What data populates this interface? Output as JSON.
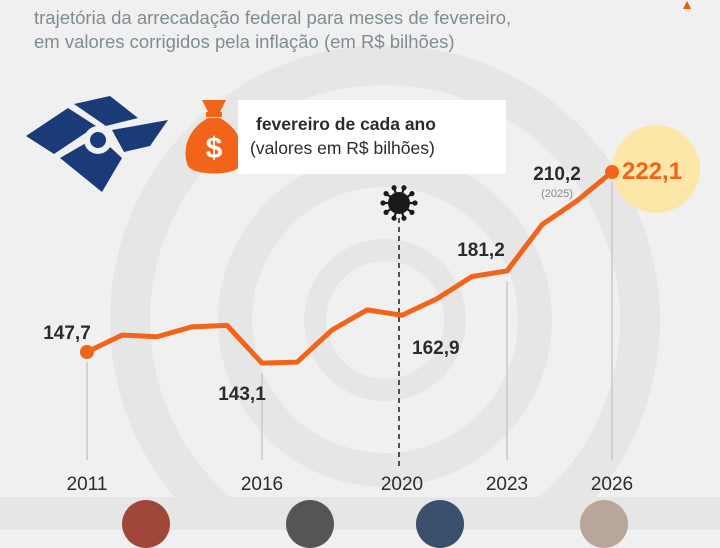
{
  "header": {
    "line1": "trajetória da arrecadação federal para meses de fevereiro,",
    "line2": "em valores corrigidos pela inflação (em R$ bilhões)"
  },
  "legend": {
    "title": "fevereiro de cada ano",
    "subtitle": "(valores em R$ bilhões)",
    "icon": "money-bag-icon",
    "icon_symbol": "$"
  },
  "logo": {
    "icon": "receita-federal-logo"
  },
  "event_marker": {
    "icon": "virus-icon",
    "year": 2020
  },
  "colors": {
    "line": "#f26419",
    "highlight": "#fde7a8",
    "label": "#2b2b2b",
    "last_label": "#f26419",
    "logo": "#1a3b78",
    "background": "#f0f0f0",
    "header_text": "#7f8c93"
  },
  "chart_data": {
    "type": "line",
    "x": [
      2011,
      2012,
      2013,
      2014,
      2015,
      2016,
      2017,
      2018,
      2019,
      2020,
      2021,
      2022,
      2023,
      2024,
      2025,
      2026
    ],
    "y": [
      147.7,
      154.7,
      154.0,
      158.1,
      158.7,
      143.1,
      143.5,
      156.8,
      165.1,
      162.9,
      169.7,
      178.9,
      181.2,
      200.3,
      210.2,
      222.1
    ],
    "xticks": [
      "2011",
      "2016",
      "2020",
      "2023",
      "2026"
    ],
    "ylim": [
      120,
      230
    ],
    "grid": false,
    "labels": [
      {
        "x": 2011,
        "text": "147,7"
      },
      {
        "x": 2016,
        "text": "143,1"
      },
      {
        "x": 2020,
        "text": "162,9"
      },
      {
        "x": 2023,
        "text": "181,2"
      },
      {
        "x": 2025,
        "text": "210,2",
        "note": "(2025)"
      },
      {
        "x": 2026,
        "text": "222,1",
        "highlight": true
      }
    ]
  }
}
